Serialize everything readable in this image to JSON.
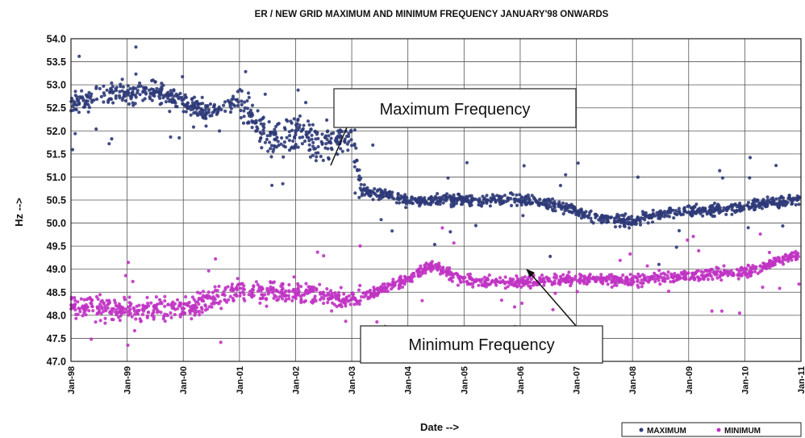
{
  "chart_data": {
    "type": "scatter",
    "title": "ER / NEW GRID MAXIMUM AND MINIMUM FREQUENCY JANUARY'98 ONWARDS",
    "xlabel": "Date -->",
    "ylabel": "Hz -->",
    "ylim": [
      47.0,
      54.0
    ],
    "yticks": [
      "54.0",
      "53.5",
      "53.0",
      "52.5",
      "52.0",
      "51.5",
      "51.0",
      "50.5",
      "50.0",
      "49.5",
      "49.0",
      "48.5",
      "48.0",
      "47.5",
      "47.0"
    ],
    "xlim": [
      "1998-01",
      "2011-01"
    ],
    "xticks": [
      "Jan-98",
      "Jan-99",
      "Jan-00",
      "Jan-01",
      "Jan-02",
      "Jan-03",
      "Jan-04",
      "Jan-05",
      "Jan-06",
      "Jan-07",
      "Jan-08",
      "Jan-09",
      "Jan-10",
      "Jan-11"
    ],
    "grid": true,
    "legend_position": "bottom-right",
    "series": [
      {
        "name": "MAXIMUM",
        "color": "#2e3a78",
        "trend": [
          {
            "x": "1998-01",
            "y": 52.6
          },
          {
            "x": "1998-07",
            "y": 52.8
          },
          {
            "x": "1999-01",
            "y": 52.8
          },
          {
            "x": "1999-07",
            "y": 52.85
          },
          {
            "x": "2000-01",
            "y": 52.6
          },
          {
            "x": "2000-07",
            "y": 52.4
          },
          {
            "x": "2001-01",
            "y": 52.7
          },
          {
            "x": "2001-07",
            "y": 51.8
          },
          {
            "x": "2002-01",
            "y": 51.9
          },
          {
            "x": "2002-07",
            "y": 51.7
          },
          {
            "x": "2003-01",
            "y": 51.9
          },
          {
            "x": "2003-03",
            "y": 50.7
          },
          {
            "x": "2004-01",
            "y": 50.5
          },
          {
            "x": "2005-01",
            "y": 50.5
          },
          {
            "x": "2006-01",
            "y": 50.5
          },
          {
            "x": "2006-10",
            "y": 50.35
          },
          {
            "x": "2007-06",
            "y": 50.1
          },
          {
            "x": "2008-01",
            "y": 50.05
          },
          {
            "x": "2008-07",
            "y": 50.2
          },
          {
            "x": "2009-01",
            "y": 50.25
          },
          {
            "x": "2010-01",
            "y": 50.35
          },
          {
            "x": "2010-12",
            "y": 50.5
          }
        ]
      },
      {
        "name": "MINIMUM",
        "color": "#c033c3",
        "trend": [
          {
            "x": "1998-01",
            "y": 48.2
          },
          {
            "x": "1999-01",
            "y": 48.1
          },
          {
            "x": "2000-01",
            "y": 48.15
          },
          {
            "x": "2001-01",
            "y": 48.55
          },
          {
            "x": "2002-01",
            "y": 48.5
          },
          {
            "x": "2003-01",
            "y": 48.3
          },
          {
            "x": "2004-01",
            "y": 48.8
          },
          {
            "x": "2004-06",
            "y": 49.1
          },
          {
            "x": "2005-01",
            "y": 48.75
          },
          {
            "x": "2006-01",
            "y": 48.7
          },
          {
            "x": "2007-01",
            "y": 48.8
          },
          {
            "x": "2008-01",
            "y": 48.75
          },
          {
            "x": "2009-01",
            "y": 48.85
          },
          {
            "x": "2010-01",
            "y": 48.95
          },
          {
            "x": "2010-12",
            "y": 49.3
          }
        ]
      }
    ],
    "annotations": [
      "Maximum Frequency",
      "Minimum Frequency"
    ]
  }
}
